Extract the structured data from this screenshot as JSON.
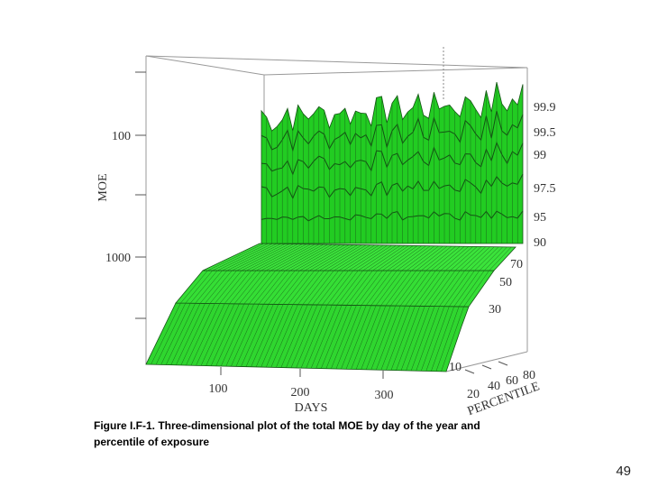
{
  "figure": {
    "y_axis_label": "MOE",
    "y_tick_labels": [
      "100",
      "1000"
    ],
    "x_axis_label": "DAYS",
    "x_tick_labels": [
      "100",
      "200",
      "300"
    ],
    "depth_axis_label": "PERCENTILE",
    "depth_tick_labels": [
      "10",
      "20",
      "40",
      "60",
      "80"
    ],
    "surface_labels": [
      "99.9",
      "99.5",
      "99",
      "97.5",
      "95",
      "90",
      "70",
      "50",
      "30"
    ]
  },
  "caption": [
    "Figure I.F-1.  Three-dimensional plot of the total MOE by day of the year and",
    "percentile of exposure"
  ],
  "page_number": "49"
}
